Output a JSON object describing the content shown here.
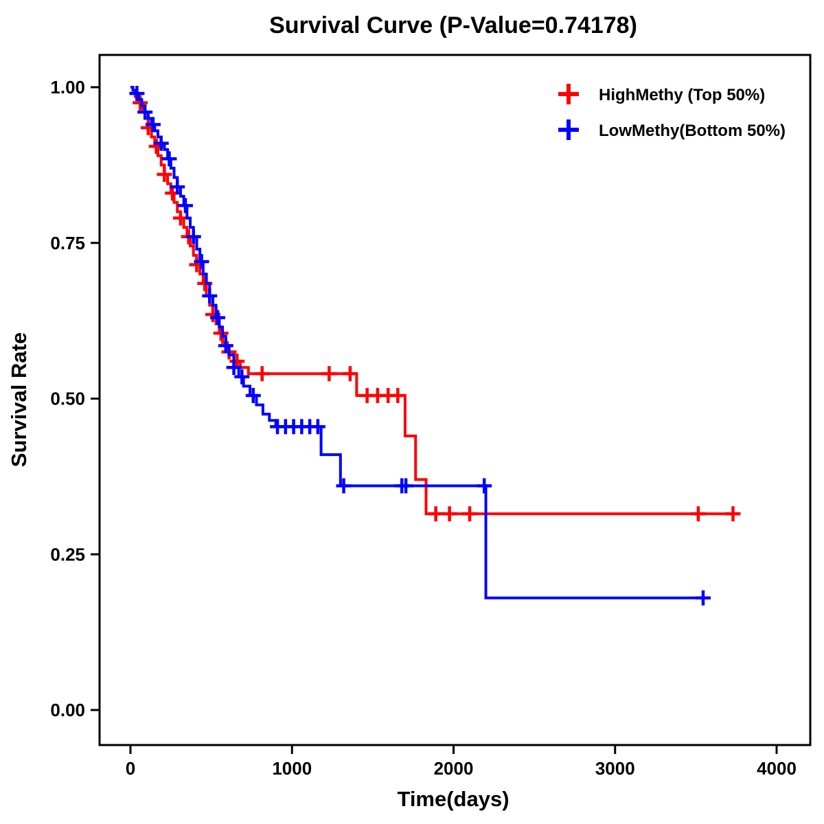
{
  "chart_data": {
    "type": "line",
    "subtype": "kaplan-meier-step",
    "title": "Survival Curve (P-Value=0.74178)",
    "xlabel": "Time(days)",
    "ylabel": "Survival Rate",
    "p_value": "0.74178",
    "xlim": [
      0,
      4000
    ],
    "ylim": [
      0,
      1
    ],
    "x_ticks": [
      0,
      1000,
      2000,
      3000,
      4000
    ],
    "y_ticks": [
      0,
      0.25,
      0.5,
      0.75,
      1
    ],
    "grid": "off",
    "legend": {
      "position": "top-right",
      "entries": [
        {
          "label": "HighMethy (Top 50%)",
          "color": "#ff0000"
        },
        {
          "label": "LowMethy(Bottom 50%)",
          "color": "#0000ff"
        }
      ]
    },
    "series": [
      {
        "id": "high-methy",
        "name": "HighMethy (Top 50%)",
        "color": "#ff0000",
        "steps": [
          [
            0,
            1.0
          ],
          [
            15,
            0.995
          ],
          [
            30,
            0.985
          ],
          [
            50,
            0.975
          ],
          [
            70,
            0.965
          ],
          [
            90,
            0.95
          ],
          [
            110,
            0.935
          ],
          [
            130,
            0.92
          ],
          [
            150,
            0.905
          ],
          [
            170,
            0.89
          ],
          [
            190,
            0.875
          ],
          [
            210,
            0.86
          ],
          [
            230,
            0.845
          ],
          [
            250,
            0.83
          ],
          [
            270,
            0.815
          ],
          [
            290,
            0.8
          ],
          [
            310,
            0.79
          ],
          [
            330,
            0.775
          ],
          [
            350,
            0.76
          ],
          [
            370,
            0.745
          ],
          [
            390,
            0.73
          ],
          [
            410,
            0.715
          ],
          [
            430,
            0.7
          ],
          [
            450,
            0.685
          ],
          [
            470,
            0.665
          ],
          [
            490,
            0.65
          ],
          [
            510,
            0.635
          ],
          [
            530,
            0.62
          ],
          [
            550,
            0.605
          ],
          [
            570,
            0.59
          ],
          [
            600,
            0.575
          ],
          [
            640,
            0.56
          ],
          [
            680,
            0.55
          ],
          [
            730,
            0.54
          ],
          [
            1400,
            0.505
          ],
          [
            1700,
            0.44
          ],
          [
            1765,
            0.37
          ],
          [
            1830,
            0.315
          ],
          [
            3730,
            0.315
          ]
        ],
        "censor_days": [
          60,
          110,
          160,
          210,
          260,
          310,
          360,
          410,
          460,
          510,
          560,
          610,
          660,
          815,
          1230,
          1360,
          1465,
          1530,
          1595,
          1655,
          1890,
          1975,
          2100,
          3515,
          3730
        ]
      },
      {
        "id": "low-methy",
        "name": "LowMethy(Bottom 50%)",
        "color": "#0000ff",
        "steps": [
          [
            0,
            1.0
          ],
          [
            15,
            0.995
          ],
          [
            30,
            0.99
          ],
          [
            50,
            0.98
          ],
          [
            70,
            0.97
          ],
          [
            90,
            0.96
          ],
          [
            110,
            0.95
          ],
          [
            130,
            0.94
          ],
          [
            150,
            0.93
          ],
          [
            170,
            0.92
          ],
          [
            190,
            0.91
          ],
          [
            210,
            0.9
          ],
          [
            230,
            0.885
          ],
          [
            250,
            0.87
          ],
          [
            270,
            0.855
          ],
          [
            290,
            0.84
          ],
          [
            310,
            0.825
          ],
          [
            330,
            0.81
          ],
          [
            350,
            0.79
          ],
          [
            370,
            0.775
          ],
          [
            390,
            0.76
          ],
          [
            410,
            0.74
          ],
          [
            430,
            0.72
          ],
          [
            450,
            0.7
          ],
          [
            470,
            0.685
          ],
          [
            490,
            0.665
          ],
          [
            510,
            0.65
          ],
          [
            530,
            0.63
          ],
          [
            550,
            0.615
          ],
          [
            570,
            0.6
          ],
          [
            590,
            0.585
          ],
          [
            610,
            0.57
          ],
          [
            640,
            0.55
          ],
          [
            670,
            0.535
          ],
          [
            700,
            0.52
          ],
          [
            740,
            0.505
          ],
          [
            780,
            0.49
          ],
          [
            820,
            0.475
          ],
          [
            860,
            0.465
          ],
          [
            900,
            0.455
          ],
          [
            1180,
            0.41
          ],
          [
            1300,
            0.36
          ],
          [
            2200,
            0.18
          ],
          [
            3550,
            0.18
          ]
        ],
        "censor_days": [
          40,
          90,
          140,
          190,
          240,
          290,
          340,
          390,
          440,
          490,
          540,
          590,
          640,
          690,
          760,
          910,
          960,
          1010,
          1060,
          1110,
          1160,
          1320,
          1680,
          1705,
          2190,
          3545
        ]
      }
    ]
  }
}
